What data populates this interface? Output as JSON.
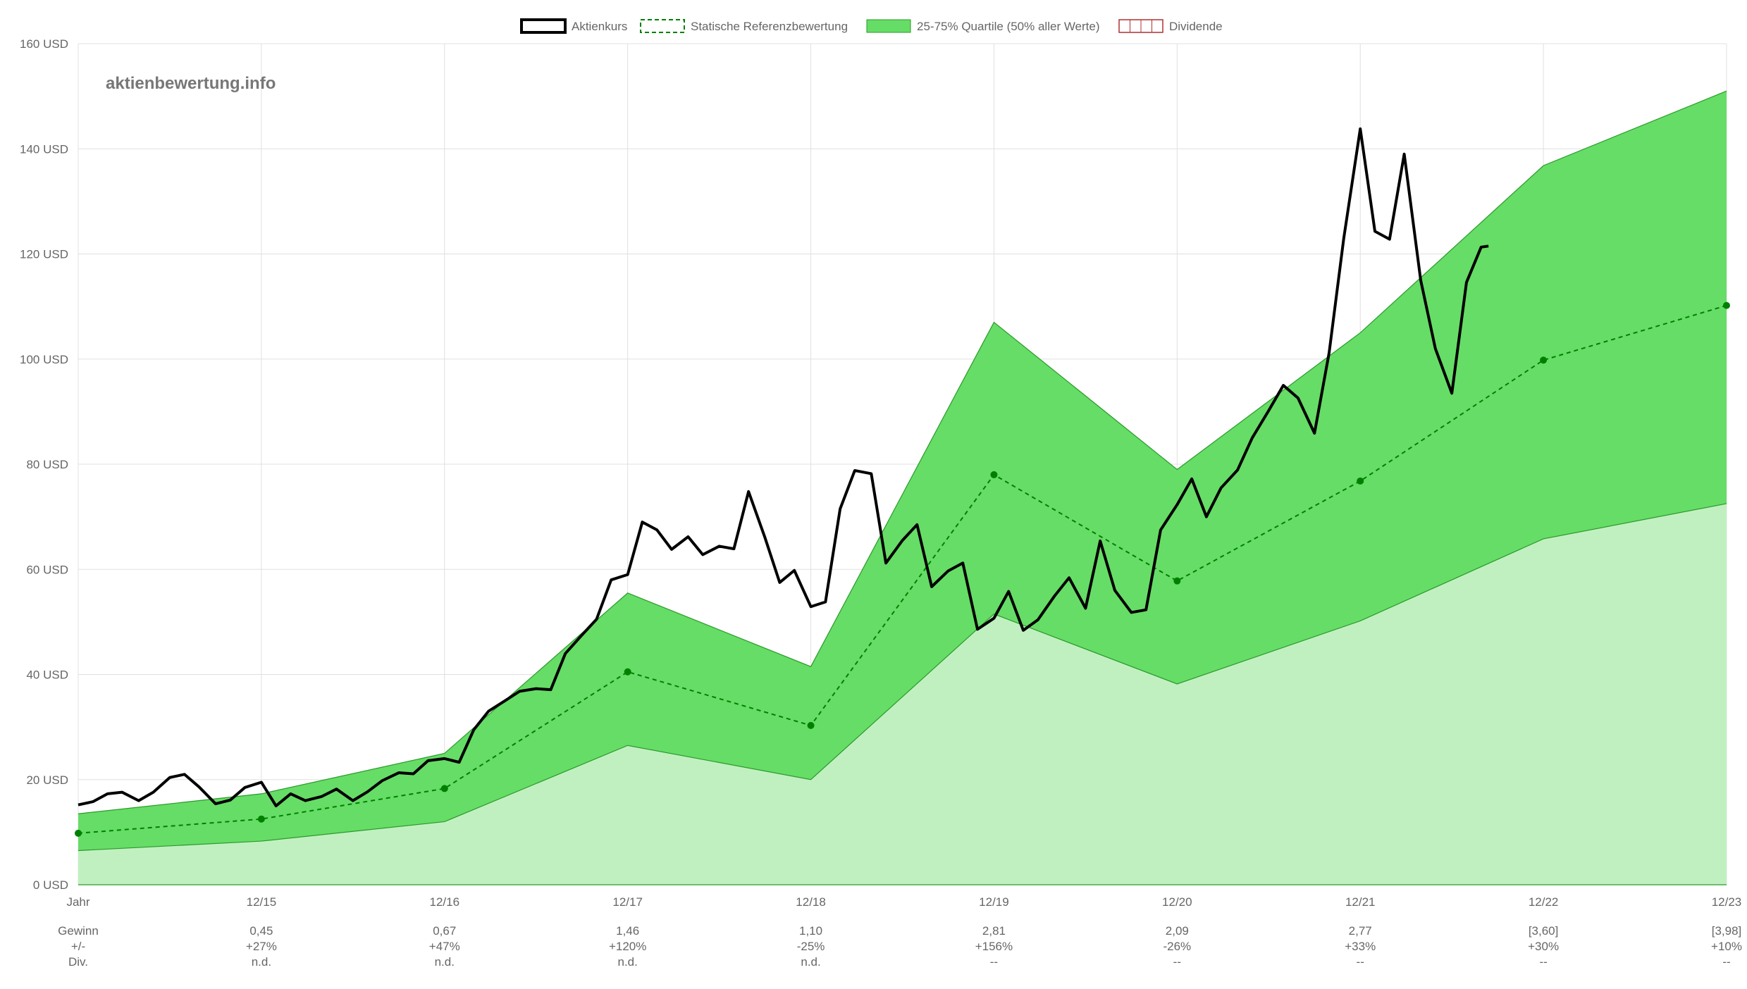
{
  "watermark": "aktienbewertung.info",
  "legend": [
    {
      "label": "Aktienkurs",
      "style": "price"
    },
    {
      "label": "Statische Referenzbewertung",
      "style": "ref"
    },
    {
      "label": "25-75% Quartile (50% aller Werte)",
      "style": "band"
    },
    {
      "label": "Dividende",
      "style": "div"
    }
  ],
  "colors": {
    "price": "#000000",
    "ref": "#008000",
    "band_upper": "#66dd66",
    "band_lower": "#c0f0c0",
    "band_line": "#2a9a2a",
    "grid": "#e0e0e0",
    "div": "#b03030"
  },
  "chart_data": {
    "type": "line",
    "ylim": [
      0,
      160
    ],
    "ytick_step": 20,
    "yunit": "USD",
    "x_labels": [
      "Jahr",
      "12/15",
      "12/16",
      "12/17",
      "12/18",
      "12/19",
      "12/20",
      "12/21",
      "12/22",
      "12/23"
    ],
    "row_labels": [
      "Gewinn",
      "+/-",
      "Div."
    ],
    "rows": [
      [
        "0,45",
        "0,67",
        "1,46",
        "1,10",
        "2,81",
        "2,09",
        "2,77",
        "[3,60]",
        "[3,98]"
      ],
      [
        "+27%",
        "+47%",
        "+120%",
        "-25%",
        "+156%",
        "-26%",
        "+33%",
        "+30%",
        "+10%"
      ],
      [
        "n.d.",
        "n.d.",
        "n.d.",
        "n.d.",
        "--",
        "--",
        "--",
        "--",
        "--"
      ]
    ],
    "ref_valuation": [
      9.8,
      12.5,
      18.3,
      40.5,
      30.3,
      78.0,
      57.8,
      76.8,
      99.8,
      110.2
    ],
    "quartile_upper": [
      13.5,
      17.3,
      25.0,
      55.5,
      41.5,
      107.0,
      79.0,
      105.0,
      136.8,
      151.0
    ],
    "quartile_lower": [
      6.5,
      8.3,
      12.0,
      26.5,
      20.0,
      51.5,
      38.2,
      50.2,
      65.8,
      72.5
    ],
    "price": [
      [
        0.0,
        15.2
      ],
      [
        0.08,
        15.8
      ],
      [
        0.16,
        17.3
      ],
      [
        0.24,
        17.6
      ],
      [
        0.33,
        16.0
      ],
      [
        0.41,
        17.6
      ],
      [
        0.5,
        20.4
      ],
      [
        0.58,
        21.0
      ],
      [
        0.66,
        18.6
      ],
      [
        0.75,
        15.4
      ],
      [
        0.83,
        16.1
      ],
      [
        0.91,
        18.5
      ],
      [
        1.0,
        19.5
      ],
      [
        1.08,
        15.0
      ],
      [
        1.16,
        17.3
      ],
      [
        1.24,
        16.0
      ],
      [
        1.33,
        16.8
      ],
      [
        1.41,
        18.2
      ],
      [
        1.5,
        16.0
      ],
      [
        1.58,
        17.7
      ],
      [
        1.66,
        19.8
      ],
      [
        1.75,
        21.3
      ],
      [
        1.83,
        21.1
      ],
      [
        1.91,
        23.6
      ],
      [
        2.0,
        24.0
      ],
      [
        2.08,
        23.3
      ],
      [
        2.16,
        29.5
      ],
      [
        2.24,
        33.0
      ],
      [
        2.33,
        35.0
      ],
      [
        2.41,
        36.8
      ],
      [
        2.5,
        37.3
      ],
      [
        2.58,
        37.1
      ],
      [
        2.66,
        44.0
      ],
      [
        2.75,
        47.5
      ],
      [
        2.83,
        50.5
      ],
      [
        2.91,
        58.0
      ],
      [
        3.0,
        59.0
      ],
      [
        3.08,
        69.0
      ],
      [
        3.16,
        67.5
      ],
      [
        3.24,
        63.8
      ],
      [
        3.33,
        66.2
      ],
      [
        3.41,
        62.8
      ],
      [
        3.5,
        64.4
      ],
      [
        3.58,
        63.9
      ],
      [
        3.66,
        74.8
      ],
      [
        3.75,
        66.0
      ],
      [
        3.83,
        57.5
      ],
      [
        3.91,
        59.8
      ],
      [
        4.0,
        52.9
      ],
      [
        4.08,
        53.8
      ],
      [
        4.16,
        71.5
      ],
      [
        4.24,
        78.8
      ],
      [
        4.33,
        78.2
      ],
      [
        4.41,
        61.2
      ],
      [
        4.5,
        65.5
      ],
      [
        4.58,
        68.5
      ],
      [
        4.66,
        56.7
      ],
      [
        4.75,
        59.7
      ],
      [
        4.83,
        61.2
      ],
      [
        4.91,
        48.6
      ],
      [
        5.0,
        50.7
      ],
      [
        5.08,
        55.8
      ],
      [
        5.16,
        48.4
      ],
      [
        5.24,
        50.4
      ],
      [
        5.33,
        54.9
      ],
      [
        5.41,
        58.4
      ],
      [
        5.5,
        52.6
      ],
      [
        5.58,
        65.4
      ],
      [
        5.66,
        56.0
      ],
      [
        5.75,
        51.8
      ],
      [
        5.83,
        52.3
      ],
      [
        5.91,
        67.5
      ],
      [
        6.0,
        72.3
      ],
      [
        6.08,
        77.2
      ],
      [
        6.16,
        70.0
      ],
      [
        6.24,
        75.5
      ],
      [
        6.33,
        78.9
      ],
      [
        6.41,
        85.0
      ],
      [
        6.5,
        90.2
      ],
      [
        6.58,
        95.0
      ],
      [
        6.66,
        92.6
      ],
      [
        6.75,
        85.9
      ],
      [
        6.83,
        101.2
      ],
      [
        6.91,
        123.0
      ],
      [
        7.0,
        143.8
      ],
      [
        7.08,
        124.3
      ],
      [
        7.16,
        122.8
      ],
      [
        7.24,
        139.0
      ],
      [
        7.33,
        115.0
      ],
      [
        7.41,
        102.0
      ],
      [
        7.5,
        93.5
      ],
      [
        7.58,
        114.6
      ],
      [
        7.66,
        121.3
      ],
      [
        7.7,
        121.5
      ]
    ]
  }
}
